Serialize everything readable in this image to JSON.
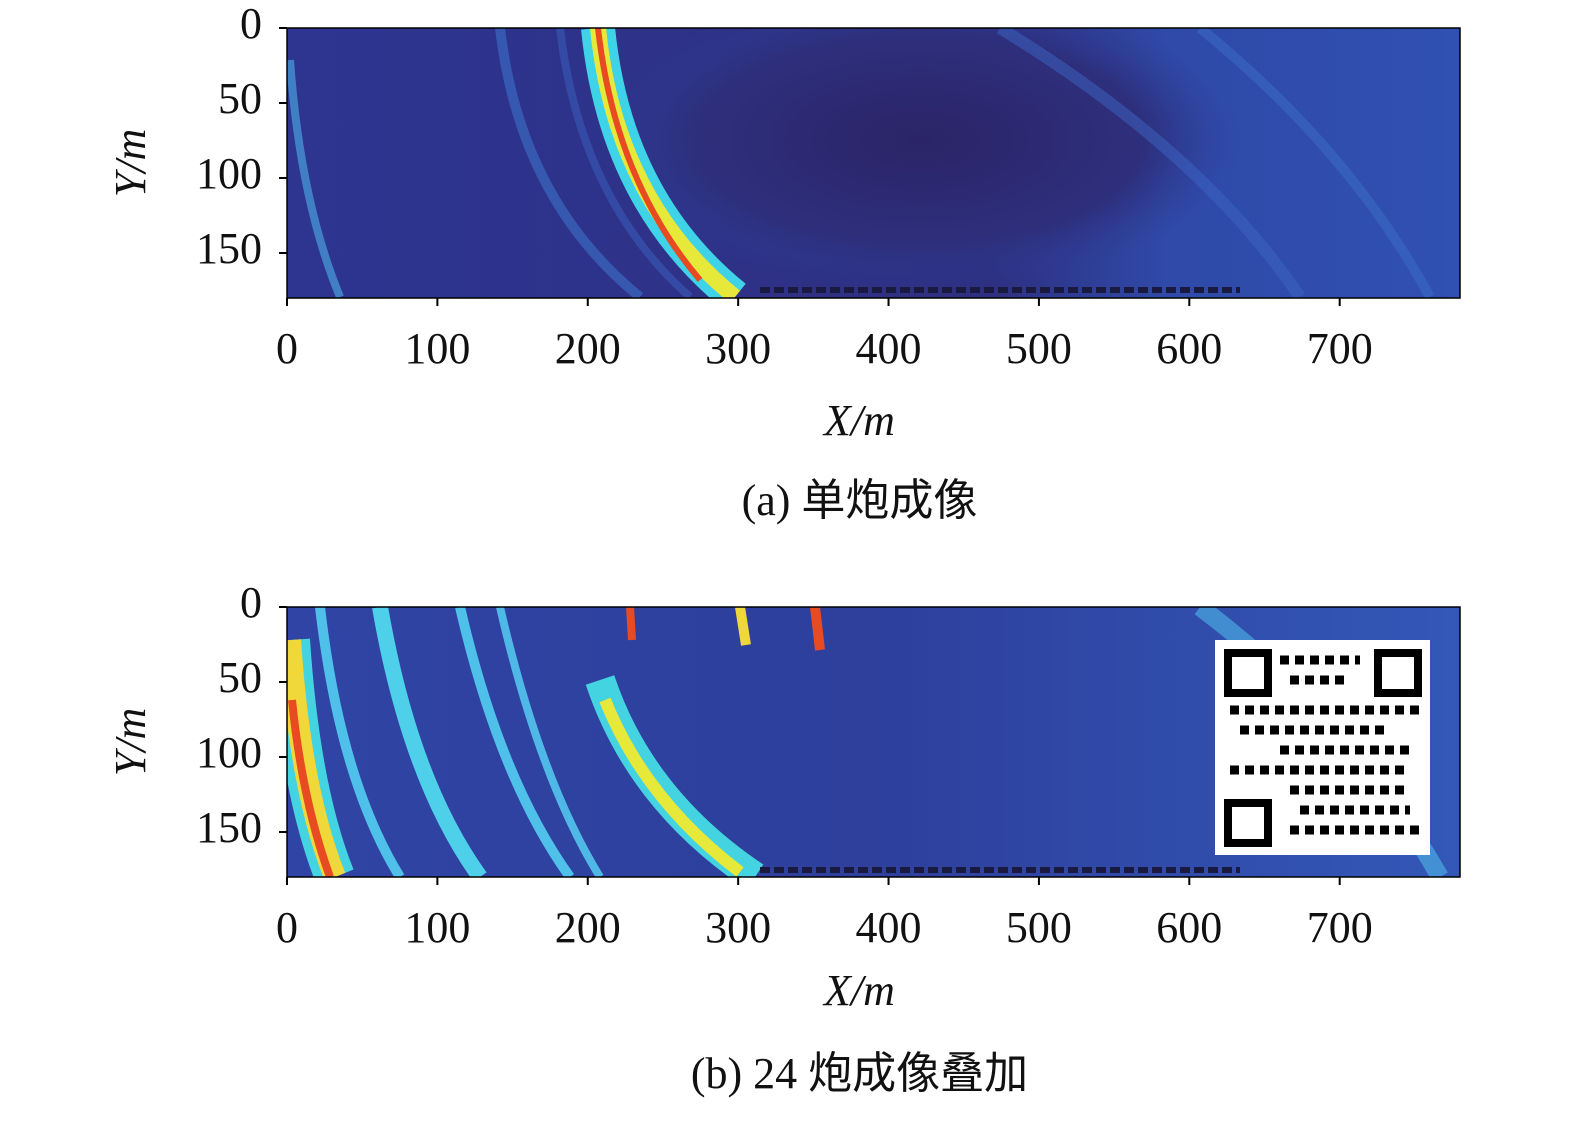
{
  "chart_data": [
    {
      "type": "heatmap",
      "caption": "(a) 单炮成像",
      "xlabel": "X/m",
      "ylabel": "Y/m",
      "xlim": [
        0,
        780
      ],
      "xticks": [
        0,
        100,
        200,
        300,
        400,
        500,
        600,
        700
      ],
      "ylim": [
        0,
        180
      ],
      "yticks": [
        0,
        50,
        100,
        150
      ],
      "y_inverted": true
    },
    {
      "type": "heatmap",
      "caption": "(b) 24 炮成像叠加",
      "xlabel": "X/m",
      "ylabel": "Y/m",
      "xlim": [
        0,
        780
      ],
      "xticks": [
        0,
        100,
        200,
        300,
        400,
        500,
        600,
        700
      ],
      "ylim": [
        0,
        180
      ],
      "yticks": [
        0,
        50,
        100,
        150
      ],
      "y_inverted": true
    }
  ]
}
